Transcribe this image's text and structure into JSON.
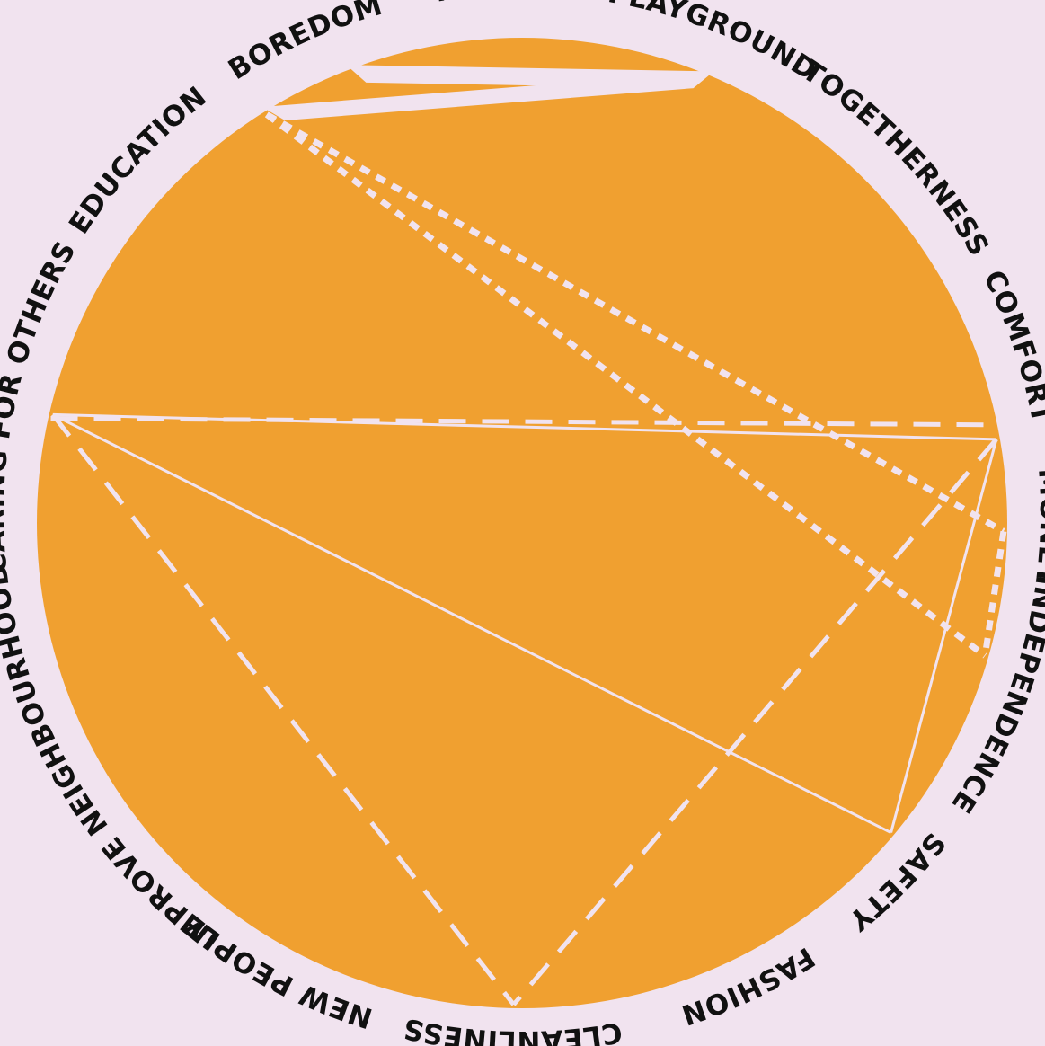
{
  "colors": {
    "background": "#f1e3ef",
    "circle_fill": "#f0a030",
    "link_color": "#f1e3ef",
    "label_color": "#111111"
  },
  "labels": [
    {
      "id": "nature",
      "text": "NATURE"
    },
    {
      "id": "playground",
      "text": "PLAYGROUND"
    },
    {
      "id": "togetherness",
      "text": "TOGETHERNESS"
    },
    {
      "id": "comfort",
      "text": "COMFORT"
    },
    {
      "id": "money",
      "text": "MONEY"
    },
    {
      "id": "independence",
      "text": "INDEPENDENCE"
    },
    {
      "id": "safety",
      "text": "SAFETY"
    },
    {
      "id": "fashion",
      "text": "FASHION"
    },
    {
      "id": "cleanliness",
      "text": "CLEANLINESS"
    },
    {
      "id": "new_people",
      "text": "NEW PEOPLE"
    },
    {
      "id": "improve_neighbourhood",
      "text": "IMPROVE NEIGHBOURHOOD"
    },
    {
      "id": "caring_for_others",
      "text": "CARING FOR OTHERS"
    },
    {
      "id": "education",
      "text": "EDUCATION"
    },
    {
      "id": "boredom",
      "text": "BOREDOM"
    }
  ],
  "links": [
    {
      "from": "boredom",
      "to": "playground",
      "style": "gap"
    },
    {
      "from": "nature",
      "to": "playground",
      "style": "gap"
    },
    {
      "from": "caring_for_others",
      "to": "comfort",
      "style": "solid"
    },
    {
      "from": "caring_for_others",
      "to": "safety",
      "style": "solid"
    },
    {
      "from": "comfort",
      "to": "safety",
      "style": "solid"
    },
    {
      "from": "caring_for_others",
      "to": "comfort",
      "style": "dashed"
    },
    {
      "from": "caring_for_others",
      "to": "cleanliness",
      "style": "dashed"
    },
    {
      "from": "comfort",
      "to": "cleanliness",
      "style": "dashed"
    },
    {
      "from": "boredom",
      "to": "money",
      "style": "dotted"
    },
    {
      "from": "boredom",
      "to": "independence",
      "style": "dotted"
    },
    {
      "from": "money",
      "to": "independence",
      "style": "dotted"
    }
  ]
}
